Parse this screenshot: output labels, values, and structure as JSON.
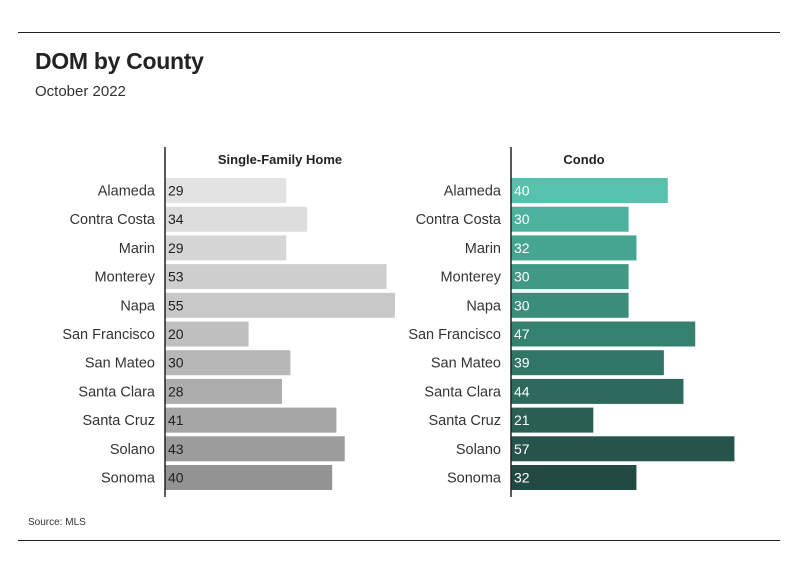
{
  "title": "DOM by County",
  "subtitle": "October 2022",
  "source": "Source: MLS",
  "chart_data": [
    {
      "type": "bar",
      "orientation": "horizontal",
      "title": "Single-Family Home",
      "categories": [
        "Alameda",
        "Contra Costa",
        "Marin",
        "Monterey",
        "Napa",
        "San Francisco",
        "San Mateo",
        "Santa Clara",
        "Santa Cruz",
        "Solano",
        "Sonoma"
      ],
      "values": [
        29,
        34,
        29,
        53,
        55,
        20,
        30,
        28,
        41,
        43,
        40
      ],
      "xlim": [
        0,
        56
      ],
      "colors": [
        "#e3e3e3",
        "#dcdcdc",
        "#d6d6d6",
        "#cfcfcf",
        "#c8c8c8",
        "#bfbfbf",
        "#b7b7b7",
        "#adadad",
        "#a5a5a5",
        "#9c9c9c",
        "#939393"
      ],
      "label_color": "#222222"
    },
    {
      "type": "bar",
      "orientation": "horizontal",
      "title": "Condo",
      "categories": [
        "Alameda",
        "Contra Costa",
        "Marin",
        "Monterey",
        "Napa",
        "San Francisco",
        "San Mateo",
        "Santa Clara",
        "Santa Cruz",
        "Solano",
        "Sonoma"
      ],
      "values": [
        40,
        30,
        32,
        30,
        30,
        47,
        39,
        44,
        21,
        57,
        32
      ],
      "xlim": [
        0,
        58
      ],
      "colors": [
        "#56c2ac",
        "#4db29d",
        "#46a591",
        "#3f9985",
        "#398d7a",
        "#358170",
        "#317566",
        "#2d695c",
        "#2a5e53",
        "#27544a",
        "#234a42"
      ],
      "label_color": "#ffffff"
    }
  ]
}
